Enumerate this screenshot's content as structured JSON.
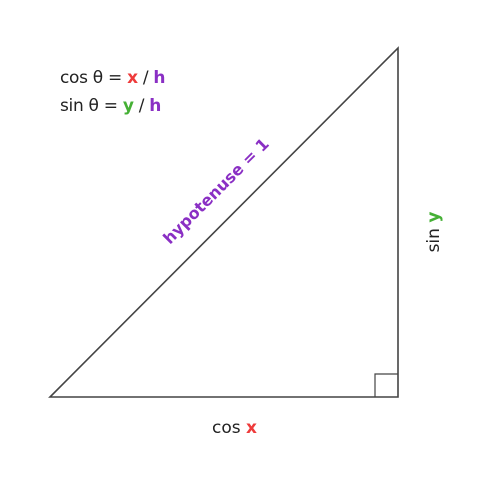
{
  "formulas": {
    "cos": {
      "lhs": "cos θ",
      "eq": " = ",
      "num": "x",
      "sep": " / ",
      "den": "h"
    },
    "sin": {
      "lhs": "sin θ",
      "eq": " = ",
      "num": "y",
      "sep": " / ",
      "den": "h"
    }
  },
  "labels": {
    "bottom": {
      "fn": "cos ",
      "var": "x"
    },
    "right": {
      "fn": "sin ",
      "var": "y"
    },
    "hypotenuse": "hypotenuse = 1"
  },
  "colors": {
    "x": "#ee3b3b",
    "y": "#45b035",
    "h": "#8a2fc4",
    "stroke": "#444444"
  }
}
